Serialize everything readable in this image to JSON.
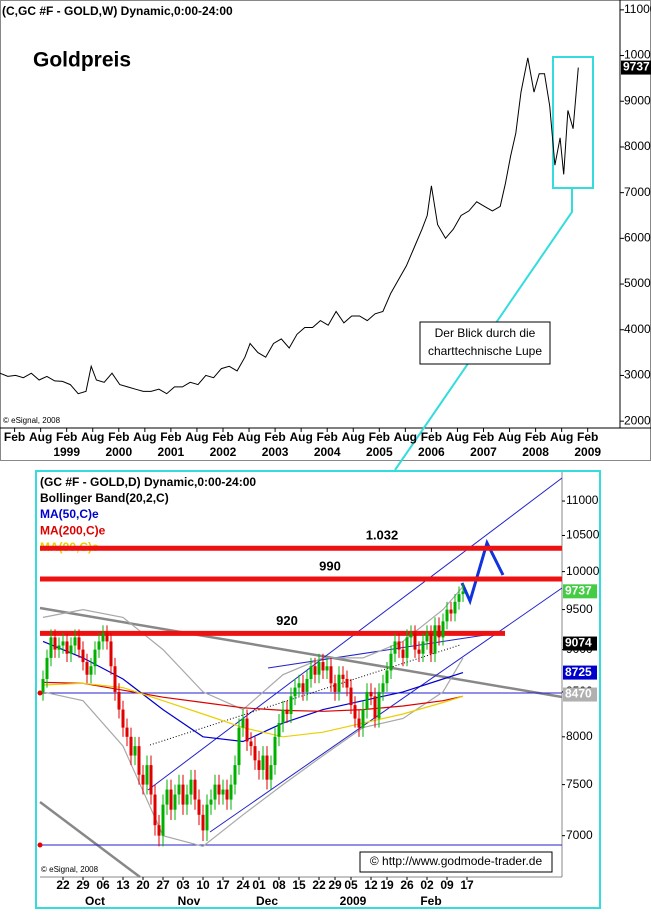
{
  "chart_data": [
    {
      "type": "line",
      "title": "(C,GC #F - GOLD,W) Dynamic,0:00-24:00",
      "subtitle": "Goldpreis",
      "annotation": [
        "Der Blick durch die",
        "charttechnische Lupe"
      ],
      "source": "© eSignal, 2008",
      "color": "#000000",
      "x": [
        1997.8,
        1997.95,
        1998.1,
        1998.25,
        1998.4,
        1998.55,
        1998.7,
        1998.85,
        1999.0,
        1999.15,
        1999.3,
        1999.45,
        1999.55,
        1999.65,
        1999.8,
        1999.95,
        2000.1,
        2000.25,
        2000.4,
        2000.55,
        2000.7,
        2000.85,
        2001.0,
        2001.15,
        2001.3,
        2001.45,
        2001.6,
        2001.75,
        2001.9,
        2002.05,
        2002.2,
        2002.35,
        2002.5,
        2002.6,
        2002.75,
        2002.9,
        2003.05,
        2003.2,
        2003.35,
        2003.5,
        2003.65,
        2003.8,
        2003.95,
        2004.1,
        2004.25,
        2004.4,
        2004.55,
        2004.7,
        2004.85,
        2005.0,
        2005.15,
        2005.3,
        2005.45,
        2005.6,
        2005.75,
        2005.9,
        2006.0,
        2006.08,
        2006.2,
        2006.35,
        2006.5,
        2006.65,
        2006.8,
        2006.95,
        2007.1,
        2007.25,
        2007.4,
        2007.5,
        2007.6,
        2007.7,
        2007.8,
        2007.93,
        2008.05,
        2008.15,
        2008.25,
        2008.35,
        2008.45,
        2008.55,
        2008.62,
        2008.7,
        2008.8,
        2008.9
      ],
      "values": [
        3050,
        2980,
        3000,
        2950,
        3050,
        2900,
        2980,
        2880,
        2870,
        2800,
        2600,
        2650,
        3200,
        2900,
        2850,
        3050,
        2800,
        2750,
        2700,
        2650,
        2650,
        2700,
        2600,
        2750,
        2750,
        2850,
        2800,
        3000,
        2950,
        3150,
        3200,
        3100,
        3400,
        3700,
        3500,
        3400,
        3700,
        3800,
        3600,
        3900,
        4050,
        4050,
        4200,
        4100,
        4400,
        4150,
        4300,
        4300,
        4200,
        4350,
        4400,
        4800,
        5100,
        5400,
        5800,
        6200,
        6500,
        7150,
        6300,
        6000,
        6200,
        6500,
        6600,
        6800,
        6700,
        6600,
        6700,
        7200,
        7800,
        8300,
        9200,
        9950,
        9200,
        9600,
        9600,
        8900,
        7600,
        8200,
        7400,
        8800,
        8400,
        9737
      ],
      "xlim": [
        1997.8,
        2009.7
      ],
      "ylim": [
        1850,
        11150
      ],
      "yticks": [
        2000,
        3000,
        4000,
        5000,
        6000,
        7000,
        8000,
        9000,
        10000,
        11000
      ],
      "xticks": [
        {
          "value": 1998.08,
          "label": "Feb"
        },
        {
          "value": 1998.58,
          "label": "Aug"
        },
        {
          "value": 1999.08,
          "label": "Feb"
        },
        {
          "value": 1999.58,
          "label": "Aug"
        },
        {
          "value": 2000.08,
          "label": "Feb"
        },
        {
          "value": 2000.58,
          "label": "Aug"
        },
        {
          "value": 2001.08,
          "label": "Feb"
        },
        {
          "value": 2001.58,
          "label": "Aug"
        },
        {
          "value": 2002.08,
          "label": "Feb"
        },
        {
          "value": 2002.58,
          "label": "Aug"
        },
        {
          "value": 2003.08,
          "label": "Feb"
        },
        {
          "value": 2003.58,
          "label": "Aug"
        },
        {
          "value": 2004.08,
          "label": "Feb"
        },
        {
          "value": 2004.58,
          "label": "Aug"
        },
        {
          "value": 2005.08,
          "label": "Feb"
        },
        {
          "value": 2005.58,
          "label": "Aug"
        },
        {
          "value": 2006.08,
          "label": "Feb"
        },
        {
          "value": 2006.58,
          "label": "Aug"
        },
        {
          "value": 2007.08,
          "label": "Feb"
        },
        {
          "value": 2007.58,
          "label": "Aug"
        },
        {
          "value": 2008.08,
          "label": "Feb"
        },
        {
          "value": 2008.58,
          "label": "Aug"
        },
        {
          "value": 2009.08,
          "label": "Feb"
        }
      ],
      "year_ticks": [
        {
          "value": 1999.08,
          "label": "1999"
        },
        {
          "value": 2000.08,
          "label": "2000"
        },
        {
          "value": 2001.08,
          "label": "2001"
        },
        {
          "value": 2002.08,
          "label": "2002"
        },
        {
          "value": 2003.08,
          "label": "2003"
        },
        {
          "value": 2004.08,
          "label": "2004"
        },
        {
          "value": 2005.08,
          "label": "2005"
        },
        {
          "value": 2006.08,
          "label": "2006"
        },
        {
          "value": 2007.08,
          "label": "2007"
        },
        {
          "value": 2008.08,
          "label": "2008"
        },
        {
          "value": 2009.08,
          "label": "2009"
        }
      ]
    },
    {
      "type": "candlestick",
      "title": "(GC #F - GOLD,D) Dynamic,0:00-24:00",
      "source": "© eSignal, 2008",
      "credit": "© http://www.godmode-trader.de",
      "up_color": "#00b000",
      "down_color": "#e00000",
      "open": [
        8500,
        8650,
        8900,
        9150,
        9000,
        9050,
        9100,
        8950,
        9050,
        9150,
        9000,
        8850,
        8700,
        8800,
        9000,
        9100,
        9200,
        9100,
        8800,
        8500,
        8300,
        8100,
        8000,
        7800,
        7900,
        7600,
        7500,
        7700,
        7400,
        7100,
        7000,
        7300,
        7450,
        7250,
        7400,
        7500,
        7300,
        7400,
        7550,
        7350,
        7200,
        7050,
        7300,
        7350,
        7500,
        7400,
        7450,
        7350,
        7500,
        7700,
        8100,
        8200,
        7950,
        7900,
        7750,
        7650,
        7800,
        7550,
        7700,
        8000,
        8150,
        8300,
        8250,
        8450,
        8550,
        8600,
        8500,
        8650,
        8800,
        8700,
        8850,
        8750,
        8800,
        8600,
        8500,
        8700,
        8650,
        8550,
        8350,
        8200,
        8100,
        8300,
        8500,
        8450,
        8200,
        8500,
        8600,
        8750,
        8950,
        9100,
        9000,
        8900,
        9150,
        9200,
        9000,
        8950,
        9100,
        9200,
        8950,
        9300,
        9150,
        9350,
        9500,
        9450,
        9600,
        9700
      ],
      "high": [
        8750,
        9000,
        9250,
        9250,
        9150,
        9200,
        9200,
        9150,
        9250,
        9250,
        9100,
        8950,
        8900,
        9100,
        9200,
        9300,
        9300,
        9200,
        8900,
        8600,
        8400,
        8200,
        8100,
        8000,
        8000,
        7700,
        7800,
        7800,
        7500,
        7200,
        7400,
        7550,
        7550,
        7500,
        7600,
        7600,
        7500,
        7650,
        7650,
        7450,
        7300,
        7400,
        7450,
        7600,
        7600,
        7550,
        7550,
        7600,
        7800,
        8200,
        8300,
        8300,
        8050,
        8000,
        7850,
        7900,
        7900,
        7800,
        8100,
        8250,
        8400,
        8400,
        8550,
        8650,
        8700,
        8700,
        8750,
        8900,
        8900,
        8950,
        8950,
        8900,
        8900,
        8700,
        8800,
        8800,
        8750,
        8650,
        8450,
        8300,
        8400,
        8600,
        8600,
        8550,
        8600,
        8700,
        8850,
        9050,
        9200,
        9200,
        9100,
        9250,
        9300,
        9300,
        9100,
        9200,
        9300,
        9300,
        9400,
        9400,
        9450,
        9600,
        9600,
        9700,
        9800,
        9837
      ],
      "low": [
        8400,
        8550,
        8800,
        8900,
        8900,
        8950,
        8850,
        8850,
        8950,
        8900,
        8750,
        8600,
        8600,
        8700,
        8900,
        9000,
        9000,
        8700,
        8400,
        8200,
        8000,
        7900,
        7700,
        7700,
        7500,
        7400,
        7400,
        7300,
        7000,
        6900,
        6900,
        7200,
        7150,
        7150,
        7300,
        7200,
        7200,
        7300,
        7250,
        7100,
        6950,
        6950,
        7200,
        7250,
        7300,
        7300,
        7250,
        7250,
        7400,
        7600,
        8000,
        7850,
        7800,
        7650,
        7550,
        7550,
        7450,
        7450,
        7600,
        7900,
        8050,
        8150,
        8150,
        8350,
        8450,
        8400,
        8400,
        8550,
        8600,
        8600,
        8650,
        8650,
        8500,
        8400,
        8400,
        8550,
        8450,
        8250,
        8100,
        8000,
        8000,
        8200,
        8350,
        8100,
        8100,
        8400,
        8500,
        8650,
        8850,
        8900,
        8800,
        8800,
        9050,
        8900,
        8850,
        8850,
        9000,
        8850,
        8850,
        9050,
        9050,
        9250,
        9350,
        9350,
        9500,
        9600
      ],
      "close": [
        8650,
        8900,
        9150,
        9000,
        9050,
        9100,
        8950,
        9050,
        9150,
        9000,
        8850,
        8700,
        8800,
        9000,
        9100,
        9200,
        9100,
        8800,
        8500,
        8300,
        8100,
        8000,
        7800,
        7900,
        7600,
        7500,
        7700,
        7400,
        7100,
        7000,
        7300,
        7450,
        7250,
        7400,
        7500,
        7300,
        7400,
        7550,
        7350,
        7200,
        7050,
        7300,
        7350,
        7500,
        7400,
        7450,
        7350,
        7500,
        7700,
        8100,
        8200,
        7950,
        7900,
        7750,
        7650,
        7800,
        7550,
        7700,
        8000,
        8150,
        8300,
        8250,
        8450,
        8550,
        8600,
        8500,
        8650,
        8800,
        8700,
        8850,
        8750,
        8800,
        8600,
        8500,
        8700,
        8650,
        8550,
        8350,
        8200,
        8100,
        8300,
        8500,
        8450,
        8200,
        8500,
        8600,
        8750,
        8950,
        9100,
        9000,
        8900,
        9150,
        9200,
        9000,
        8950,
        9100,
        9200,
        8950,
        9300,
        9150,
        9350,
        9500,
        9450,
        9600,
        9700,
        9737
      ],
      "close_color": "#44cc44",
      "ma_x": [
        0,
        10,
        20,
        30,
        40,
        50,
        60,
        70,
        80,
        90,
        100,
        105
      ],
      "bands": {
        "name": "Bollinger Band(20,2,C)",
        "color": "#a8a8a8",
        "upper": [
          9400,
          9500,
          9400,
          9000,
          8500,
          8300,
          8700,
          8900,
          8900,
          9100,
          9500,
          9800
        ],
        "lower": [
          8500,
          8400,
          7900,
          7000,
          6900,
          7200,
          7500,
          7800,
          8100,
          8200,
          8500,
          8900
        ]
      },
      "series": [
        {
          "name": "MA(50,C)e",
          "color": "#0000cc",
          "values": [
            9100,
            8900,
            8650,
            8300,
            8000,
            7950,
            8150,
            8300,
            8400,
            8500,
            8650,
            8725
          ]
        },
        {
          "name": "MA(200,C)e",
          "color": "#dd0000",
          "values": [
            8610,
            8600,
            8520,
            8440,
            8380,
            8320,
            8290,
            8280,
            8300,
            8340,
            8400,
            8450
          ]
        },
        {
          "name": "MA(90,C)e",
          "color": "#e8d000",
          "values": [
            8580,
            8600,
            8550,
            8400,
            8250,
            8100,
            8000,
            8050,
            8150,
            8250,
            8380,
            8450
          ]
        }
      ],
      "levels": [
        {
          "value": 10320,
          "label": "1.032"
        },
        {
          "value": 9900,
          "label": "990"
        },
        {
          "value": 9200,
          "label": "920"
        }
      ],
      "level_color": "#ee1111",
      "price_markers": [
        {
          "value": 9074,
          "color": "#000000"
        },
        {
          "value": 8725,
          "color": "#0000cc"
        },
        {
          "value": 8470,
          "color": "#b0b0b0"
        }
      ],
      "log": true,
      "xlim": [
        -0.75,
        129.75
      ],
      "ylim": [
        6620,
        11440
      ],
      "yticks": [
        7000,
        7500,
        8000,
        8500,
        9000,
        9500,
        10000,
        10500,
        11000
      ],
      "xticks": [
        {
          "value": 5,
          "label": "22"
        },
        {
          "value": 10,
          "label": "29"
        },
        {
          "value": 15,
          "label": "06"
        },
        {
          "value": 20,
          "label": "13"
        },
        {
          "value": 25,
          "label": "20"
        },
        {
          "value": 30,
          "label": "27"
        },
        {
          "value": 35,
          "label": "03"
        },
        {
          "value": 40,
          "label": "10"
        },
        {
          "value": 45,
          "label": "17"
        },
        {
          "value": 50,
          "label": "24"
        },
        {
          "value": 54,
          "label": "01"
        },
        {
          "value": 59,
          "label": "08"
        },
        {
          "value": 64,
          "label": "15"
        },
        {
          "value": 69,
          "label": "22"
        },
        {
          "value": 73,
          "label": "29"
        },
        {
          "value": 77,
          "label": "05"
        },
        {
          "value": 82,
          "label": "12"
        },
        {
          "value": 86,
          "label": "19"
        },
        {
          "value": 91,
          "label": "26"
        },
        {
          "value": 96,
          "label": "02"
        },
        {
          "value": 101,
          "label": "09"
        },
        {
          "value": 106,
          "label": "17"
        }
      ],
      "month_ticks": [
        {
          "value": 13,
          "label": "Oct"
        },
        {
          "value": 36.5,
          "label": "Nov"
        },
        {
          "value": 56,
          "label": "Dec"
        },
        {
          "value": 77.5,
          "label": "2009"
        },
        {
          "value": 97,
          "label": "Feb"
        }
      ]
    }
  ]
}
